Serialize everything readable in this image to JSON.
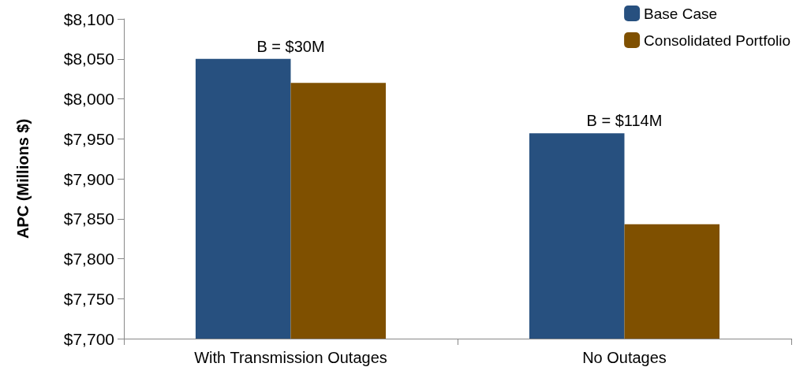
{
  "chart_data": {
    "type": "bar",
    "ylabel": "APC (Millions $)",
    "categories": [
      "With Transmission Outages",
      "No Outages"
    ],
    "series": [
      {
        "name": "Base Case",
        "color": "#27507f",
        "values": [
          8050,
          7957
        ]
      },
      {
        "name": "Consolidated Portfolio",
        "color": "#7f5000",
        "values": [
          8020,
          7843
        ]
      }
    ],
    "ylim": [
      7700,
      8100
    ],
    "yticks": [
      {
        "value": 7700,
        "label": "$7,700"
      },
      {
        "value": 7750,
        "label": "$7,750"
      },
      {
        "value": 7800,
        "label": "$7,800"
      },
      {
        "value": 7850,
        "label": "$7,850"
      },
      {
        "value": 7900,
        "label": "$7,900"
      },
      {
        "value": 7950,
        "label": "$7,950"
      },
      {
        "value": 8000,
        "label": "$8,000"
      },
      {
        "value": 8050,
        "label": "$8,050"
      },
      {
        "value": 8100,
        "label": "$8,100"
      }
    ],
    "annotations": [
      {
        "text": "B = $30M",
        "x": "With Transmission Outages",
        "y": 8050
      },
      {
        "text": "B = $114M",
        "x": "No Outages",
        "y": 7957
      }
    ],
    "grid": false,
    "legend": "top right"
  }
}
